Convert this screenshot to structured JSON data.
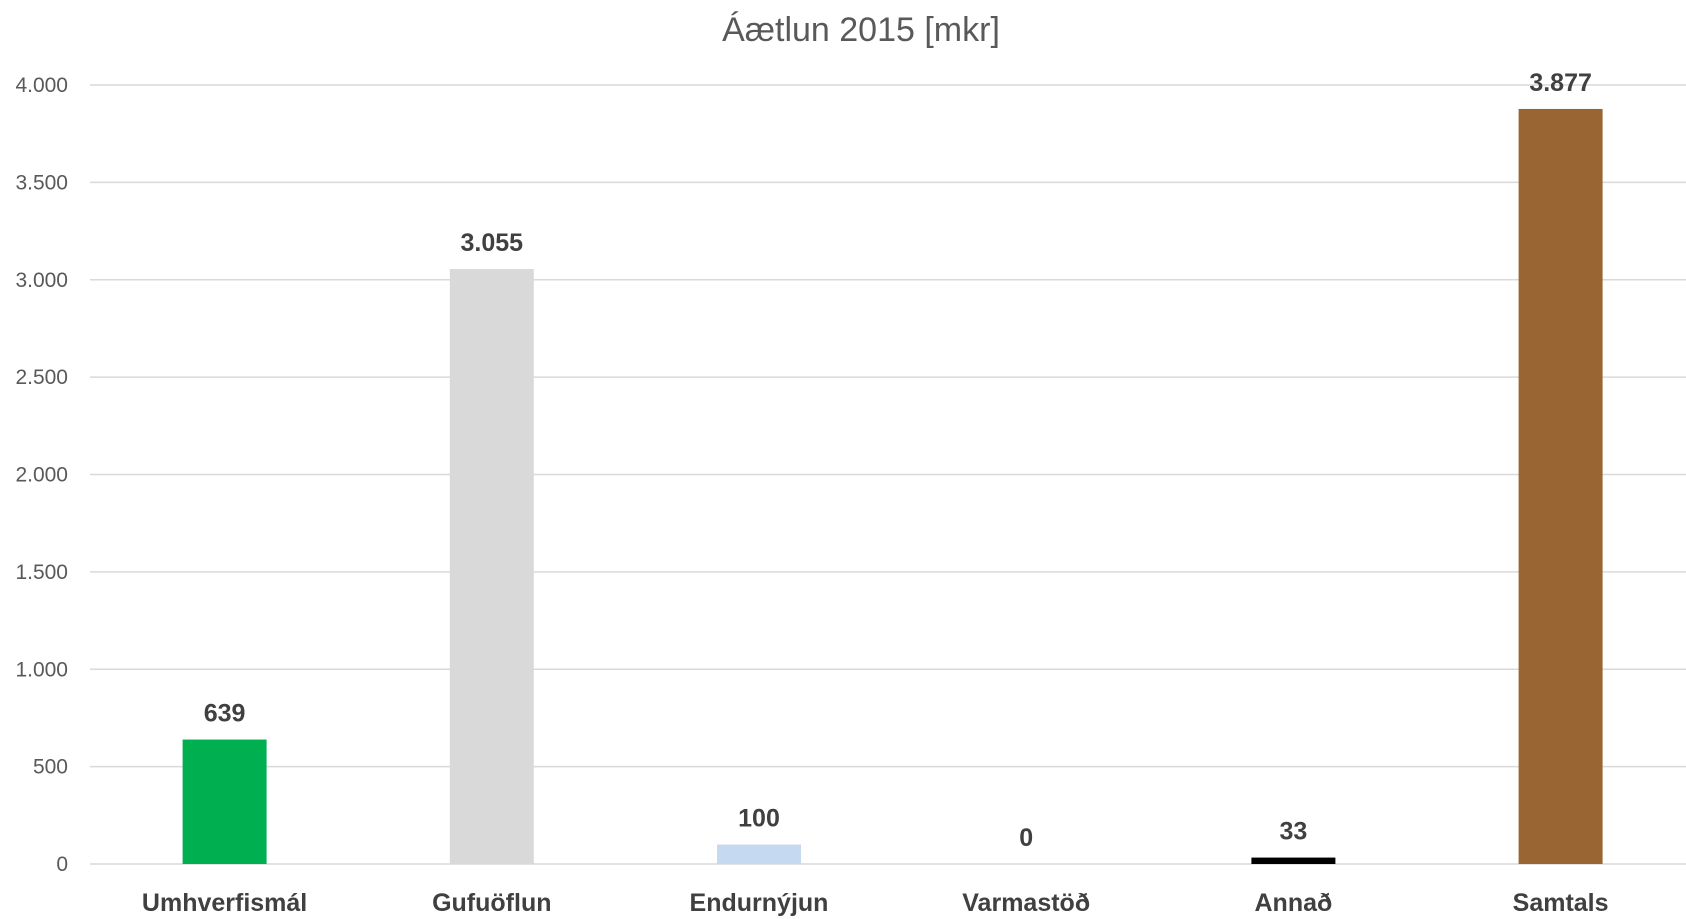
{
  "chart_data": {
    "type": "bar",
    "title": "Áætlun 2015 [mkr]",
    "xlabel": "",
    "ylabel": "",
    "categories": [
      "Umhverfismál",
      "Gufuöflun",
      "Endurnýjun",
      "Varmastöð",
      "Annað",
      "Samtals"
    ],
    "values": [
      639,
      3055,
      100,
      0,
      33,
      3877
    ],
    "data_labels": [
      "639",
      "3.055",
      "100",
      "0",
      "33",
      "3.877"
    ],
    "colors": [
      "#00b050",
      "#d9d9d9",
      "#c5d9f1",
      "#ffffff",
      "#000000",
      "#996633"
    ],
    "ylim": [
      0,
      4000
    ],
    "yticks": [
      0,
      500,
      1000,
      1500,
      2000,
      2500,
      3000,
      3500,
      4000
    ],
    "ytick_labels": [
      "0",
      "500",
      "1.000",
      "1.500",
      "2.000",
      "2.500",
      "3.000",
      "3.500",
      "4.000"
    ],
    "grid": true,
    "legend": "none"
  }
}
